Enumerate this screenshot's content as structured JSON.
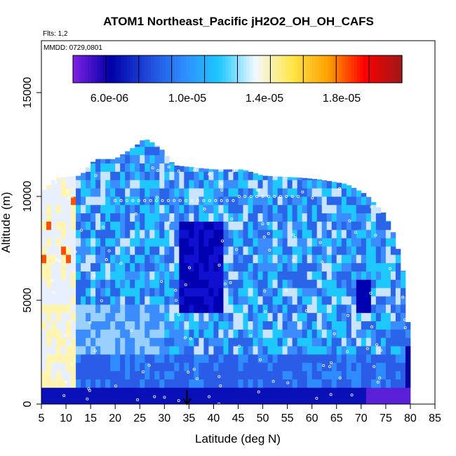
{
  "chart_data": {
    "type": "heatmap",
    "title": "ATOM1 Northeast_Pacific jH2O2_OH_OH_CAFS",
    "subtitle_flights": "Flts: 1,2",
    "subtitle_dates": "MMDD: 0729,0801",
    "xlabel": "Latitude (deg N)",
    "ylabel": "Altitude (m)",
    "xlim": [
      5,
      85
    ],
    "ylim": [
      0,
      17500
    ],
    "x_ticks": [
      "5",
      "10",
      "15",
      "20",
      "25",
      "30",
      "35",
      "40",
      "45",
      "50",
      "55",
      "60",
      "65",
      "70",
      "75",
      "80",
      "85"
    ],
    "y_ticks": [
      "0",
      "5000",
      "10000",
      "15000"
    ],
    "colorbar": {
      "colors": [
        "#7a1ee0",
        "#0000a8",
        "#1e46d8",
        "#2e8cff",
        "#1ec8ff",
        "#f4f8ff",
        "#ffe848",
        "#ffa000",
        "#ff0000",
        "#a01818"
      ],
      "labels": [
        "6.0e-06",
        "1.0e-05",
        "1.4e-05",
        "1.8e-05"
      ]
    },
    "marker_latitude": 35
  }
}
